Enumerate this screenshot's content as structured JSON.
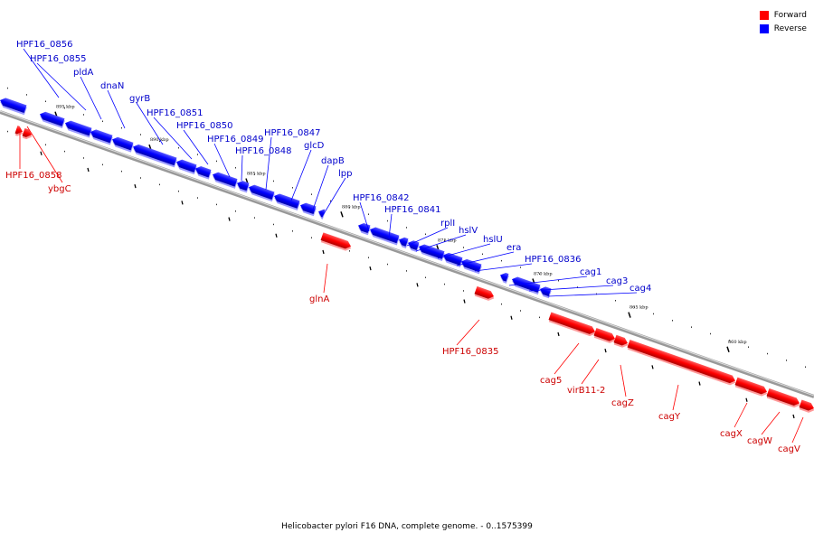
{
  "legend": {
    "forward_label": "Forward",
    "reverse_label": "Reverse",
    "forward_color": "#ff0000",
    "reverse_color": "#0000ff"
  },
  "caption": "Helicobacter pylori F16 DNA, complete genome. - 0..1575399",
  "scale_labels": [
    "895 kbp",
    "890 kbp",
    "885 kbp",
    "880 kbp",
    "875 kbp",
    "870 kbp",
    "865 kbp",
    "860 kbp"
  ],
  "reverse_genes": [
    "HPF16_0856",
    "HPF16_0855",
    "pldA",
    "dnaN",
    "gyrB",
    "HPF16_0851",
    "HPF16_0850",
    "HPF16_0849",
    "HPF16_0848",
    "HPF16_0847",
    "glcD",
    "dapB",
    "lpp",
    "HPF16_0842",
    "HPF16_0841",
    "rplI",
    "hslV",
    "hslU",
    "era",
    "HPF16_0836",
    "cag1",
    "cag3",
    "cag4"
  ],
  "forward_genes": [
    "HPF16_0858",
    "ybgC",
    "glnA",
    "HPF16_0835",
    "cag5",
    "virB11-2",
    "cagZ",
    "cagY",
    "cagX",
    "cagW",
    "cagV"
  ]
}
